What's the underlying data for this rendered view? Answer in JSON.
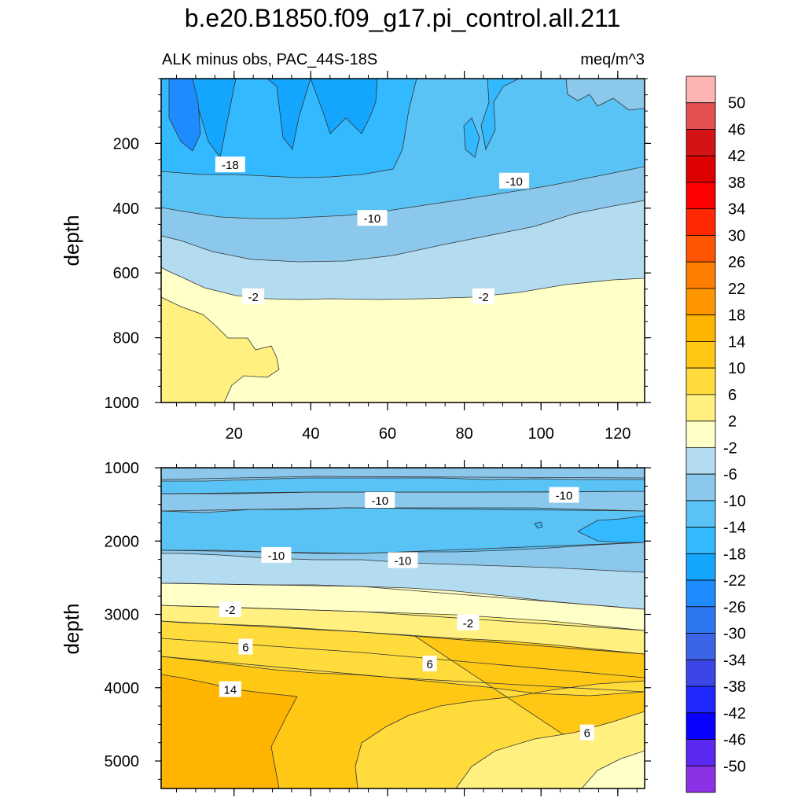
{
  "chart_data": [
    {
      "type": "contour",
      "title": "b.e20.B1850.f09_g17.pi_control.all.211",
      "subtitle_left": "ALK minus obs, PAC_44S-18S",
      "subtitle_right": "meq/m^3",
      "ylabel": "depth",
      "xlabel": "",
      "xlim": [
        1,
        127
      ],
      "ylim": [
        0,
        1000
      ],
      "y_inverted": true,
      "x_ticks": [
        20,
        40,
        60,
        80,
        100,
        120
      ],
      "y_ticks": [
        200,
        400,
        600,
        800,
        1000
      ],
      "contour_labels": [
        {
          "text": "-18",
          "x": 19,
          "y": 265
        },
        {
          "text": "-10",
          "x": 93,
          "y": 315
        },
        {
          "text": "-10",
          "x": 56,
          "y": 430
        },
        {
          "text": "-2",
          "x": 25,
          "y": 672
        },
        {
          "text": "-2",
          "x": 85,
          "y": 672
        }
      ]
    },
    {
      "type": "contour",
      "ylabel": "depth",
      "xlim": [
        1,
        127
      ],
      "ylim": [
        1000,
        5375
      ],
      "y_inverted": true,
      "y_ticks": [
        1000,
        2000,
        3000,
        4000,
        5000
      ],
      "contour_labels": [
        {
          "text": "-10",
          "x": 58,
          "y": 1440
        },
        {
          "text": "-10",
          "x": 106,
          "y": 1370
        },
        {
          "text": "-10",
          "x": 31,
          "y": 2190
        },
        {
          "text": "-10",
          "x": 64,
          "y": 2260
        },
        {
          "text": "-2",
          "x": 19,
          "y": 2930
        },
        {
          "text": "-2",
          "x": 81,
          "y": 3110
        },
        {
          "text": "6",
          "x": 23,
          "y": 3440
        },
        {
          "text": "6",
          "x": 71,
          "y": 3670
        },
        {
          "text": "14",
          "x": 19,
          "y": 4020
        },
        {
          "text": "6",
          "x": 112,
          "y": 4610
        }
      ]
    }
  ],
  "colorbar": {
    "labels": [
      "50",
      "46",
      "42",
      "38",
      "34",
      "30",
      "26",
      "22",
      "18",
      "14",
      "10",
      "6",
      "2",
      "-2",
      "-6",
      "-10",
      "-14",
      "-18",
      "-22",
      "-26",
      "-30",
      "-34",
      "-38",
      "-42",
      "-46",
      "-50"
    ],
    "colors": [
      "#FFB4B4",
      "#E65050",
      "#D21414",
      "#DC0000",
      "#FF0000",
      "#FF2800",
      "#FF5500",
      "#FF7D00",
      "#FF9600",
      "#FFB400",
      "#FFC814",
      "#FFDC3C",
      "#FFF080",
      "#FFFFC8",
      "#B4DCF0",
      "#8CC8EB",
      "#5AC3F5",
      "#32B9FF",
      "#14A5FF",
      "#1E8CFF",
      "#2D78F0",
      "#3C64E6",
      "#3C46E6",
      "#1E28FF",
      "#0A00FF",
      "#5A28F0",
      "#8C32E6"
    ]
  }
}
